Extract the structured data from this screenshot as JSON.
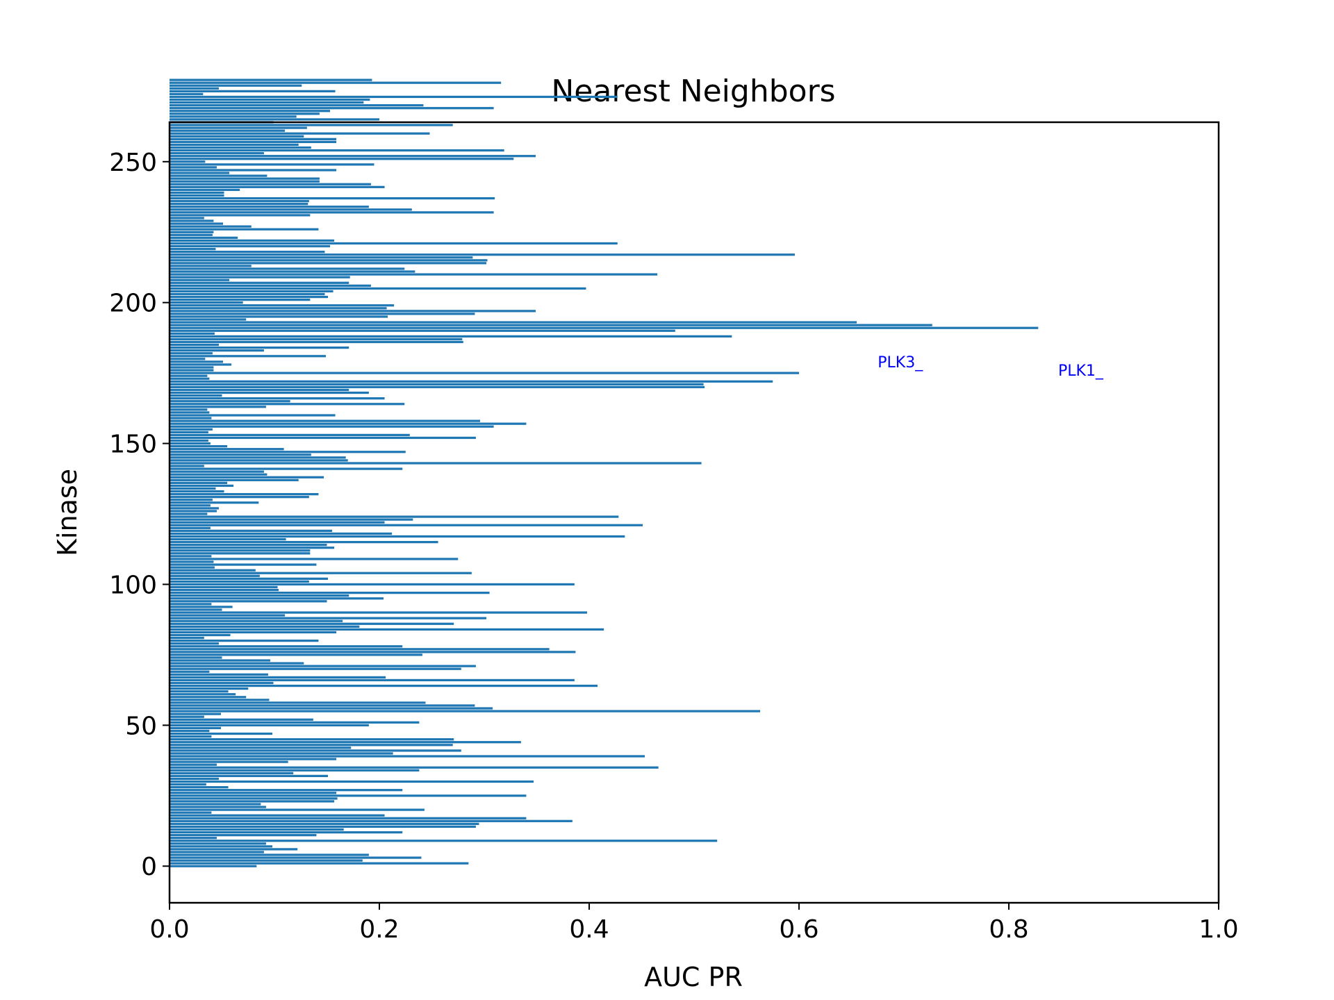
{
  "chart_data": {
    "type": "bar",
    "orientation": "horizontal",
    "title": "Nearest Neighbors",
    "xlabel": "AUC PR",
    "ylabel": "Kinase",
    "xlim": [
      0.0,
      1.0
    ],
    "ylim": [
      -13,
      264
    ],
    "xticks": [
      0.0,
      0.2,
      0.4,
      0.6,
      0.8,
      1.0
    ],
    "xtick_labels": [
      "0.0",
      "0.2",
      "0.4",
      "0.6",
      "0.8",
      "1.0"
    ],
    "yticks": [
      0,
      50,
      100,
      150,
      200,
      250
    ],
    "ytick_labels": [
      "0",
      "50",
      "100",
      "150",
      "200",
      "250"
    ],
    "grid": false,
    "bar_color": "#1f77b4",
    "annotation_color": "#0000ff",
    "annotations": [
      {
        "text": "PLK3_",
        "x": 0.675,
        "y": 177
      },
      {
        "text": "PLK1_",
        "x": 0.847,
        "y": 174
      }
    ],
    "values": [
      0.083,
      0.285,
      0.184,
      0.24,
      0.19,
      0.09,
      0.122,
      0.098,
      0.092,
      0.522,
      0.045,
      0.14,
      0.222,
      0.166,
      0.292,
      0.295,
      0.384,
      0.34,
      0.205,
      0.04,
      0.243,
      0.092,
      0.087,
      0.157,
      0.16,
      0.34,
      0.159,
      0.222,
      0.056,
      0.035,
      0.347,
      0.047,
      0.151,
      0.118,
      0.238,
      0.466,
      0.045,
      0.113,
      0.159,
      0.453,
      0.213,
      0.278,
      0.173,
      0.27,
      0.335,
      0.271,
      0.04,
      0.098,
      0.038,
      0.049,
      0.19,
      0.238,
      0.137,
      0.033,
      0.049,
      0.563,
      0.308,
      0.291,
      0.244,
      0.095,
      0.073,
      0.063,
      0.056,
      0.075,
      0.408,
      0.099,
      0.386,
      0.206,
      0.094,
      0.038,
      0.278,
      0.292,
      0.128,
      0.096,
      0.05,
      0.241,
      0.387,
      0.362,
      0.222,
      0.047,
      0.142,
      0.033,
      0.058,
      0.159,
      0.414,
      0.181,
      0.271,
      0.165,
      0.302,
      0.11,
      0.398,
      0.05,
      0.06,
      0.04,
      0.15,
      0.204,
      0.171,
      0.305,
      0.104,
      0.103,
      0.386,
      0.133,
      0.151,
      0.086,
      0.288,
      0.082,
      0.043,
      0.14,
      0.042,
      0.275,
      0.04,
      0.134,
      0.134,
      0.157,
      0.15,
      0.256,
      0.111,
      0.434,
      0.212,
      0.155,
      0.039,
      0.451,
      0.205,
      0.232,
      0.428,
      0.036,
      0.045,
      0.047,
      0.039,
      0.085,
      0.041,
      0.133,
      0.142,
      0.052,
      0.044,
      0.061,
      0.055,
      0.123,
      0.147,
      0.093,
      0.09,
      0.222,
      0.033,
      0.507,
      0.17,
      0.168,
      0.135,
      0.225,
      0.109,
      0.055,
      0.039,
      0.037,
      0.292,
      0.229,
      0.037,
      0.041,
      0.309,
      0.34,
      0.296,
      0.04,
      0.158,
      0.038,
      0.036,
      0.092,
      0.224,
      0.115,
      0.205,
      0.05,
      0.19,
      0.171,
      0.51,
      0.509,
      0.575,
      0.038,
      0.036,
      0.6,
      0.042,
      0.042,
      0.059,
      0.051,
      0.034,
      0.149,
      0.041,
      0.09,
      0.171,
      0.047,
      0.28,
      0.279,
      0.536,
      0.043,
      0.482,
      0.828,
      0.727,
      0.655,
      0.073,
      0.208,
      0.291,
      0.349,
      0.207,
      0.214,
      0.07,
      0.134,
      0.151,
      0.148,
      0.156,
      0.397,
      0.192,
      0.171,
      0.057,
      0.172,
      0.465,
      0.234,
      0.224,
      0.078,
      0.302,
      0.303,
      0.289,
      0.596,
      0.148,
      0.044,
      0.153,
      0.427,
      0.157,
      0.065,
      0.041,
      0.042,
      0.142,
      0.078,
      0.051,
      0.042,
      0.033,
      0.134,
      0.309,
      0.231,
      0.19,
      0.132,
      0.133,
      0.31,
      0.052,
      0.052,
      0.067,
      0.205,
      0.192,
      0.143,
      0.143,
      0.093,
      0.057,
      0.159,
      0.045,
      0.195,
      0.034,
      0.328,
      0.349,
      0.09,
      0.319,
      0.135,
      0.123,
      0.159,
      0.159,
      0.128,
      0.248,
      0.11,
      0.131,
      0.27,
      0.099,
      0.2,
      0.121,
      0.143,
      0.153,
      0.309,
      0.242,
      0.185,
      0.191,
      0.427,
      0.032,
      0.158,
      0.047,
      0.126,
      0.316,
      0.193
    ]
  }
}
